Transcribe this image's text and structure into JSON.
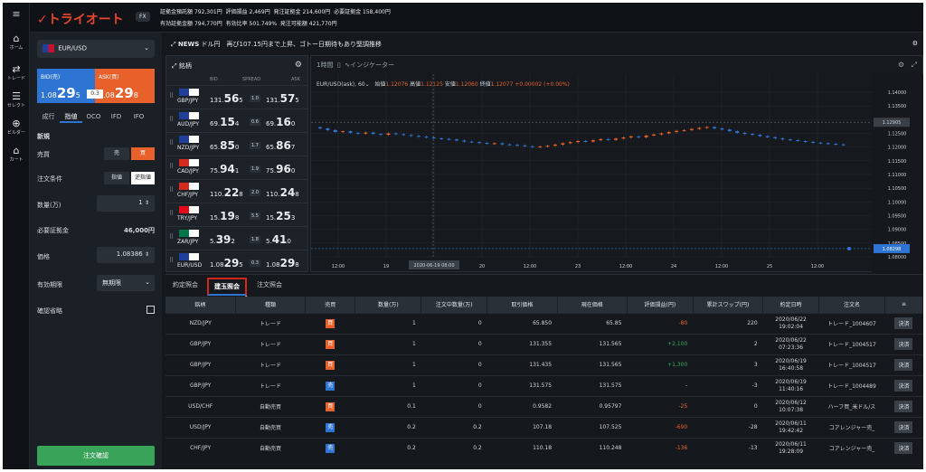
{
  "nav": [
    {
      "icon": "home-icon",
      "label": "ホーム",
      "glyph": "⌂"
    },
    {
      "icon": "trade-icon",
      "label": "トレード",
      "glyph": "⇄"
    },
    {
      "icon": "select-icon",
      "label": "セレクト",
      "glyph": "☰"
    },
    {
      "icon": "builder-icon",
      "label": "ビルダー",
      "glyph": "⊕"
    },
    {
      "icon": "cart-icon",
      "label": "カート",
      "glyph": "⌂"
    }
  ],
  "header": {
    "logo": "✓トライオート",
    "product": "FX",
    "account": [
      {
        "label": "証拠金預託額",
        "value": "792,301円"
      },
      {
        "label": "評価損益",
        "value": "2,469円"
      },
      {
        "label": "発注証拠金",
        "value": "214,600円"
      },
      {
        "label": "必要証拠金",
        "value": "158,400円"
      },
      {
        "label": "有効証拠金額",
        "value": "794,770円"
      },
      {
        "label": "有効比率",
        "value": "501.749%"
      },
      {
        "label": "発注可能額",
        "value": "421,770円"
      }
    ]
  },
  "order": {
    "pair": "EUR/USD",
    "bid_label": "BID(売)",
    "ask_label": "ASK(買)",
    "bid_main": "1.08",
    "bid_big": "29",
    "bid_small": "5",
    "ask_main": "1.08",
    "ask_big": "29",
    "ask_small": "8",
    "spread": "0.3",
    "tabs": [
      "成行",
      "指値",
      "OCO",
      "IFD",
      "IFO"
    ],
    "active_tab": "指値",
    "section": "新規",
    "trade_label": "売買",
    "sell": "売",
    "buy": "買",
    "cond_label": "注文条件",
    "cond1": "指値",
    "cond2": "逆指値",
    "qty_label": "数量(万)",
    "qty": "1",
    "margin_label": "必要証拠金",
    "margin": "46,000円",
    "price_label": "価格",
    "price": "1.08386",
    "expiry_label": "有効期限",
    "expiry": "無期限",
    "confirm_label": "確認省略",
    "submit": "注文確認"
  },
  "news": {
    "label": "NEWS",
    "text": "ドル円　再び107.15円まで上昇、ゴトー日期待もあり堅調推移"
  },
  "watchlist": {
    "title": "銘柄",
    "cols": [
      "BID",
      "SPREAD",
      "ASK"
    ],
    "rows": [
      {
        "pair": "GBP/JPY",
        "bid_a": "131.",
        "bid_b": "56",
        "bid_c": "5",
        "sp": "1.0",
        "ask_a": "131.",
        "ask_b": "57",
        "ask_c": "5"
      },
      {
        "pair": "AUD/JPY",
        "bid_a": "69.",
        "bid_b": "15",
        "bid_c": "4",
        "sp": "0.6",
        "ask_a": "69.",
        "ask_b": "16",
        "ask_c": "0"
      },
      {
        "pair": "NZD/JPY",
        "bid_a": "65.",
        "bid_b": "85",
        "bid_c": "0",
        "sp": "1.7",
        "ask_a": "65.",
        "ask_b": "86",
        "ask_c": "7"
      },
      {
        "pair": "CAD/JPY",
        "bid_a": "75.",
        "bid_b": "94",
        "bid_c": "1",
        "sp": "1.9",
        "ask_a": "75.",
        "ask_b": "96",
        "ask_c": "0"
      },
      {
        "pair": "CHF/JPY",
        "bid_a": "110.",
        "bid_b": "22",
        "bid_c": "8",
        "sp": "2.0",
        "ask_a": "110.",
        "ask_b": "24",
        "ask_c": "8"
      },
      {
        "pair": "TRY/JPY",
        "bid_a": "15.",
        "bid_b": "19",
        "bid_c": "8",
        "sp": "5.5",
        "ask_a": "15.",
        "ask_b": "25",
        "ask_c": "3"
      },
      {
        "pair": "ZAR/JPY",
        "bid_a": "5.",
        "bid_b": "39",
        "bid_c": "2",
        "sp": "1.8",
        "ask_a": "5.",
        "ask_b": "41",
        "ask_c": "0"
      },
      {
        "pair": "EUR/USD",
        "bid_a": "1.08",
        "bid_b": "29",
        "bid_c": "5",
        "sp": "0.3",
        "ask_a": "1.08",
        "ask_b": "29",
        "ask_c": "8"
      }
    ]
  },
  "chart": {
    "interval": "1時間",
    "indicator": "インジケーター",
    "symbol": "EUR/USD(ask), 60",
    "ohlc": {
      "o_label": "始値",
      "o": "1.12076",
      "h_label": "高値",
      "h": "1.12125",
      "l_label": "安値",
      "l": "1.12060",
      "c_label": "終値",
      "c": "1.12077",
      "chg": "+0.00002 (+0.00%)"
    },
    "last_price": "1.12905",
    "bid_marker": "1.08298",
    "x_ticks": [
      "12:00",
      "19",
      "12:00",
      "20",
      "12:00",
      "23",
      "12:00",
      "24",
      "12:00",
      "25",
      "12:00"
    ],
    "cursor_date": "2020-06-19",
    "cursor_time": "08:00",
    "y_ticks": [
      "1.14000",
      "1.13500",
      "1.13000",
      "1.12500",
      "1.12000",
      "1.11500",
      "1.11000",
      "1.10500",
      "1.10000",
      "1.09500",
      "1.09000",
      "1.08500",
      "1.08000"
    ]
  },
  "chart_data": {
    "type": "candlestick",
    "title": "EUR/USD(ask), 60",
    "ylim": [
      1.08,
      1.14
    ],
    "closes": [
      1.1268,
      1.1262,
      1.1255,
      1.1258,
      1.1252,
      1.1249,
      1.1253,
      1.1248,
      1.1245,
      1.125,
      1.1247,
      1.1244,
      1.1241,
      1.1238,
      1.1235,
      1.1232,
      1.123,
      1.1228,
      1.1224,
      1.122,
      1.1218,
      1.1215,
      1.1212,
      1.1214,
      1.121,
      1.1208,
      1.1206,
      1.1203,
      1.12,
      1.1202,
      1.1205,
      1.1209,
      1.1214,
      1.1218,
      1.1222,
      1.122,
      1.1225,
      1.1229,
      1.1226,
      1.1231,
      1.1235,
      1.1239,
      1.1236,
      1.1242,
      1.1246,
      1.125,
      1.1255,
      1.1259,
      1.1262,
      1.1266,
      1.127,
      1.1273,
      1.1268,
      1.1264,
      1.1258,
      1.1252,
      1.1248,
      1.1245,
      1.124,
      1.1236,
      1.1232,
      1.1228,
      1.1225,
      1.1222,
      1.1219,
      1.1216,
      1.1214,
      1.1212,
      1.121,
      1.1208
    ]
  },
  "positions": {
    "tabs": [
      "約定照会",
      "建玉照会",
      "注文照会"
    ],
    "active": "建玉照会",
    "columns": [
      "銘柄",
      "種類",
      "売買",
      "数量(万)",
      "注文中数量(万)",
      "取引価格",
      "現在価格",
      "評価損益(円)",
      "累計スワップ(円)",
      "約定日時",
      "注文名"
    ],
    "close_label": "決済",
    "rows": [
      {
        "pair": "NZD/JPY",
        "type": "トレード",
        "side": "買",
        "qty": "1",
        "pending": "0",
        "entry": "65.850",
        "current": "65.85",
        "pl": "-80",
        "swap": "220",
        "date": "2020/06/22",
        "time": "19:02:04",
        "name": "トレード_1004607"
      },
      {
        "pair": "GBP/JPY",
        "type": "トレード",
        "side": "買",
        "qty": "1",
        "pending": "0",
        "entry": "131.355",
        "current": "131.565",
        "pl": "+2,100",
        "swap": "2",
        "date": "2020/06/22",
        "time": "07:23:36",
        "name": "トレード_1004517"
      },
      {
        "pair": "GBP/JPY",
        "type": "トレード",
        "side": "買",
        "qty": "1",
        "pending": "0",
        "entry": "131.435",
        "current": "131.565",
        "pl": "+1,300",
        "swap": "3",
        "date": "2020/06/19",
        "time": "16:40:58",
        "name": "トレード_1004517"
      },
      {
        "pair": "GBP/JPY",
        "type": "トレード",
        "side": "売",
        "qty": "1",
        "pending": "0",
        "entry": "131.575",
        "current": "131.575",
        "pl": "-",
        "swap": "-3",
        "date": "2020/06/19",
        "time": "11:40:16",
        "name": "トレード_1004489"
      },
      {
        "pair": "USD/CHF",
        "type": "自動売買",
        "side": "買",
        "qty": "0.1",
        "pending": "0",
        "entry": "0.9582",
        "current": "0.95797",
        "pl": "-25",
        "swap": "0",
        "date": "2020/06/12",
        "time": "10:07:38",
        "name": "ハーフ買_米ドル/ス"
      },
      {
        "pair": "USD/JPY",
        "type": "自動売買",
        "side": "売",
        "qty": "0.2",
        "pending": "0.2",
        "entry": "107.18",
        "current": "107.525",
        "pl": "-690",
        "swap": "-28",
        "date": "2020/06/11",
        "time": "19:42:42",
        "name": "コアレンジャー売_"
      },
      {
        "pair": "CHF/JPY",
        "type": "自動売買",
        "side": "売",
        "qty": "0.2",
        "pending": "0.2",
        "entry": "110.18",
        "current": "110.248",
        "pl": "-136",
        "swap": "-13",
        "date": "2020/06/11",
        "time": "19:28:09",
        "name": "コアレンジャー売_"
      }
    ]
  },
  "colors": {
    "bid": "#2e74d3",
    "ask": "#e8602a",
    "up": "#e8602a",
    "down": "#2e74d3",
    "profit": "#3aa35a",
    "loss": "#e8602a",
    "highlight": "#d0281f"
  }
}
